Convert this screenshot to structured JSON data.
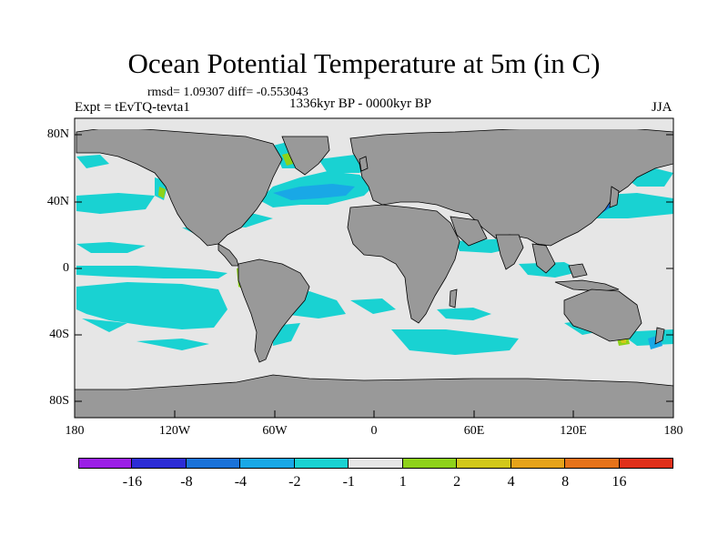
{
  "title": "Ocean Potential Temperature at 5m (in C)",
  "stats_text": "rmsd= 1.09307 diff= -0.553043",
  "experiment_text": "Expt = tEvTQ-tevta1",
  "period_text": "1336kyr BP - 0000kyr BP",
  "season_text": "JJA",
  "y_ticks": [
    "80N",
    "40N",
    "0",
    "40S",
    "80S"
  ],
  "x_ticks": [
    "180",
    "120W",
    "60W",
    "0",
    "60E",
    "120E",
    "180"
  ],
  "colors": {
    "land": "#999999",
    "near_zero": "#e6e6e6",
    "frame": "#000000"
  },
  "colorbar": {
    "labels": [
      "-16",
      "-8",
      "-4",
      "-2",
      "-1",
      "1",
      "2",
      "4",
      "8",
      "16"
    ],
    "colors": [
      "#9b1fe6",
      "#2c2cd6",
      "#1a72d9",
      "#19a8e6",
      "#19d2d2",
      "#e6e6e6",
      "#8ed21a",
      "#d2c81a",
      "#e6a31a",
      "#e6731a",
      "#e0301a"
    ]
  }
}
